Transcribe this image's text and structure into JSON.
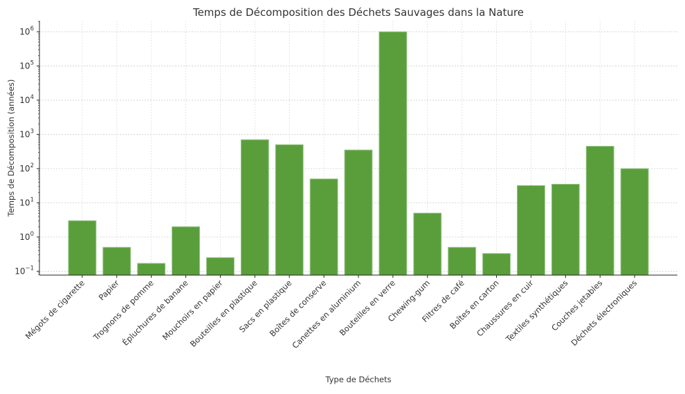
{
  "chart_data": {
    "type": "bar",
    "title": "Temps de Décomposition des Déchets Sauvages dans la Nature",
    "xlabel": "Type de Déchets",
    "ylabel": "Temps de Décomposition (années)",
    "yscale": "log",
    "ylim": [
      0.077,
      2100000
    ],
    "yticks": [
      {
        "value": 0.1,
        "base": "10",
        "exp": "−1"
      },
      {
        "value": 1,
        "base": "10",
        "exp": "0"
      },
      {
        "value": 10,
        "base": "10",
        "exp": "1"
      },
      {
        "value": 100,
        "base": "10",
        "exp": "2"
      },
      {
        "value": 1000,
        "base": "10",
        "exp": "3"
      },
      {
        "value": 10000,
        "base": "10",
        "exp": "4"
      },
      {
        "value": 100000,
        "base": "10",
        "exp": "5"
      },
      {
        "value": 1000000,
        "base": "10",
        "exp": "6"
      }
    ],
    "grid": true,
    "bar_color": "#5a9e3c",
    "categories": [
      "Mégots de cigarette",
      "Papier",
      "Trognons de pomme",
      "Épluchures de banane",
      "Mouchoirs en papier",
      "Bouteilles en plastique",
      "Sacs en plastique",
      "Boîtes de conserve",
      "Canettes en aluminium",
      "Bouteilles en verre",
      "Chewing-gum",
      "Filtres de café",
      "Boîtes en carton",
      "Chaussures en cuir",
      "Textiles synthétiques",
      "Couches jetables",
      "Déchets électroniques"
    ],
    "values": [
      3,
      0.5,
      0.17,
      2,
      0.25,
      700,
      500,
      50,
      350,
      1000000,
      5,
      0.5,
      0.33,
      32,
      35,
      450,
      100
    ]
  }
}
